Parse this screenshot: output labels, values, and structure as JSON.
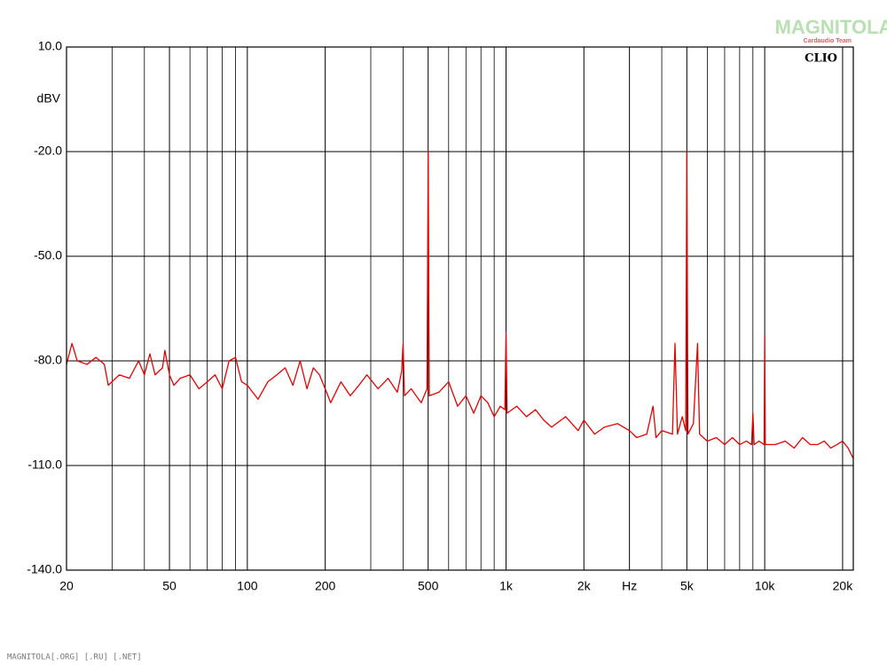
{
  "chart_data": {
    "type": "line",
    "ylabel": "dBV",
    "brand": "CLIO",
    "color": "#e80000",
    "log_x": true,
    "grid": true,
    "xlim": [
      20,
      22000
    ],
    "ylim": [
      -140,
      10
    ],
    "xticks": [
      20,
      50,
      100,
      200,
      500,
      {
        "value": 1000,
        "label": "1k"
      },
      {
        "value": 2000,
        "label": "2k"
      },
      {
        "value": 3000,
        "label": "Hz"
      },
      {
        "value": 5000,
        "label": "5k"
      },
      {
        "value": 10000,
        "label": "10k"
      },
      {
        "value": 20000,
        "label": "20k"
      }
    ],
    "xminorticks": [
      30,
      40,
      60,
      70,
      80,
      90,
      300,
      400,
      600,
      700,
      800,
      900,
      4000,
      6000,
      7000,
      8000,
      9000
    ],
    "yticks": [
      {
        "value": -140,
        "label": "-140.0"
      },
      {
        "value": -110,
        "label": "-110.0"
      },
      {
        "value": -80,
        "label": "-80.0"
      },
      {
        "value": -50,
        "label": "-50.0"
      },
      {
        "value": -20,
        "label": "-20.0"
      },
      {
        "value": 10,
        "label": "10.0"
      }
    ],
    "x": [
      20,
      21,
      22,
      24,
      26,
      28,
      29,
      32,
      35,
      38,
      40,
      42,
      44,
      47,
      48,
      50,
      52,
      55,
      60,
      65,
      70,
      75,
      80,
      85,
      90,
      95,
      100,
      110,
      120,
      130,
      140,
      150,
      160,
      170,
      180,
      190,
      200,
      210,
      230,
      250,
      270,
      290,
      320,
      350,
      380,
      395,
      400,
      405,
      430,
      470,
      495,
      500,
      505,
      550,
      600,
      650,
      700,
      750,
      800,
      850,
      900,
      950,
      990,
      1000,
      1010,
      1100,
      1200,
      1300,
      1400,
      1500,
      1700,
      1900,
      2000,
      2200,
      2400,
      2700,
      3000,
      3200,
      3500,
      3700,
      3800,
      4000,
      4400,
      4500,
      4600,
      4800,
      4950,
      5000,
      5050,
      5300,
      5500,
      5600,
      6000,
      6500,
      7000,
      7500,
      8000,
      8500,
      8900,
      9000,
      9100,
      9500,
      9950,
      10000,
      10050,
      11000,
      12000,
      13000,
      14000,
      15000,
      16000,
      17000,
      18000,
      19000,
      20000,
      21000,
      22000
    ],
    "values": [
      -81,
      -75,
      -80,
      -81,
      -79,
      -81,
      -87,
      -84,
      -85,
      -80,
      -84,
      -78,
      -84,
      -82,
      -77,
      -84,
      -87,
      -85,
      -84,
      -88,
      -86,
      -84,
      -88,
      -80,
      -79,
      -86,
      -87,
      -91,
      -86,
      -84,
      -82,
      -87,
      -80,
      -88,
      -82,
      -84,
      -88,
      -92,
      -86,
      -90,
      -87,
      -84,
      -88,
      -85,
      -89,
      -83,
      -75,
      -90,
      -88,
      -92,
      -88,
      -20,
      -90,
      -89,
      -86,
      -93,
      -90,
      -95,
      -90,
      -92,
      -96,
      -93,
      -94,
      -72,
      -95,
      -93,
      -96,
      -94,
      -97,
      -99,
      -96,
      -100,
      -97,
      -101,
      -99,
      -98,
      -100,
      -102,
      -101,
      -93,
      -102,
      -100,
      -101,
      -75,
      -101,
      -96,
      -100,
      -20,
      -101,
      -98,
      -75,
      -101,
      -103,
      -102,
      -104,
      -102,
      -104,
      -103,
      -104,
      -95,
      -104,
      -103,
      -104,
      -73,
      -104,
      -104,
      -103,
      -105,
      -102,
      -104,
      -104,
      -103,
      -105,
      -104,
      -103,
      -105,
      -108
    ]
  },
  "watermark": "MAGNITOLA",
  "watermark_sub": "Cardaudio Team",
  "footer": "MAGNITOLA[.ORG] [.RU] [.NET]"
}
